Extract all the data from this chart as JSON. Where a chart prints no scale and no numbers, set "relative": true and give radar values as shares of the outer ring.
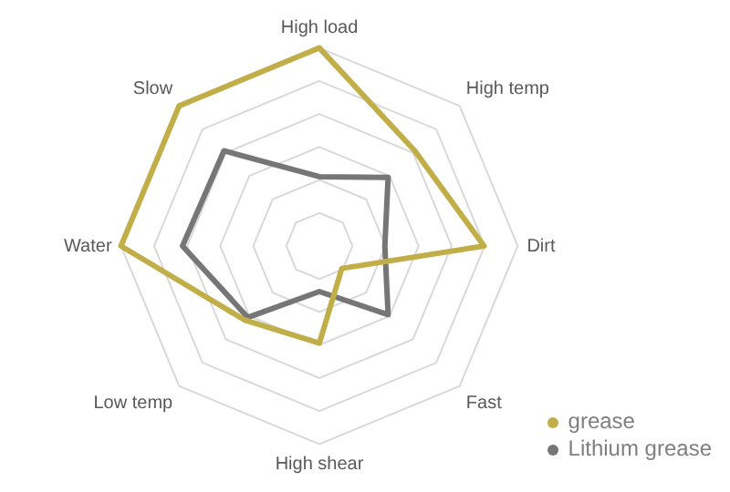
{
  "chart_data": {
    "type": "radar",
    "relative": true,
    "categories": [
      "High load",
      "High temp",
      "Dirt",
      "Fast",
      "High shear",
      "Low temp",
      "Water",
      "Slow"
    ],
    "series": [
      {
        "name": "grease",
        "color": "#c2ae48",
        "values": [
          1.0,
          0.68,
          0.83,
          0.16,
          0.49,
          0.53,
          1.0,
          1.0
        ]
      },
      {
        "name": "Lithium grease",
        "color": "#767676",
        "values": [
          0.35,
          0.49,
          0.33,
          0.49,
          0.23,
          0.51,
          0.69,
          0.68
        ]
      }
    ],
    "legend": "bottom right",
    "grid": true,
    "marker": "none"
  }
}
